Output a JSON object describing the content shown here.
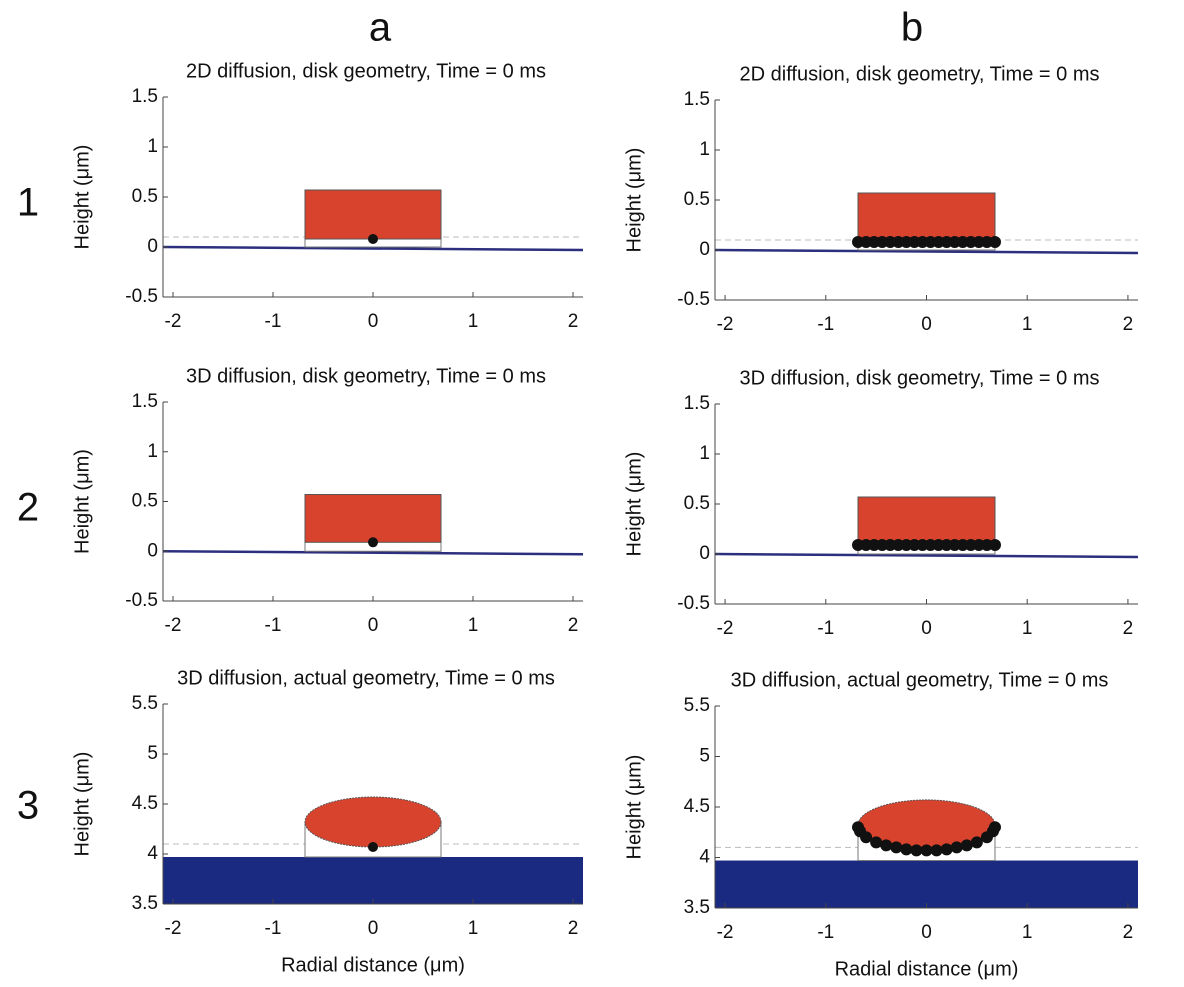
{
  "panel_labels": {
    "columns": [
      "a",
      "b"
    ],
    "rows": [
      "1",
      "2",
      "3"
    ]
  },
  "chart_data": [
    {
      "type": "geometry",
      "title": "2D diffusion, disk geometry, Time = 0 ms",
      "ylabel": "Height (μm)",
      "xlim": [
        -2.1,
        2.1
      ],
      "ylim": [
        -0.5,
        1.5
      ],
      "xticks": [
        -2,
        -1,
        0,
        1,
        2
      ],
      "yticks": [
        -0.5,
        0,
        0.5,
        1,
        1.5
      ],
      "substrate": {
        "kind": "line",
        "x": [
          -2.1,
          2.1
        ],
        "y": [
          0,
          -0.03
        ],
        "color": "#2b2f7e"
      },
      "threshold": 0.1,
      "outline": {
        "x": [
          -0.68,
          0.68
        ],
        "y": [
          0,
          0.57
        ]
      },
      "body": {
        "kind": "rect",
        "x": [
          -0.68,
          0.68
        ],
        "y": [
          0.08,
          0.57
        ],
        "color": "#d8432e"
      },
      "points": {
        "x": [
          0
        ],
        "y": [
          0.08
        ],
        "color": "#111111"
      }
    },
    {
      "type": "geometry",
      "title": "2D diffusion, disk geometry, Time = 0 ms",
      "ylabel": "Height (μm)",
      "xlim": [
        -2.1,
        2.1
      ],
      "ylim": [
        -0.5,
        1.5
      ],
      "xticks": [
        -2,
        -1,
        0,
        1,
        2
      ],
      "yticks": [
        -0.5,
        0,
        0.5,
        1,
        1.5
      ],
      "substrate": {
        "kind": "line",
        "x": [
          -2.1,
          2.1
        ],
        "y": [
          0,
          -0.03
        ],
        "color": "#2b2f7e"
      },
      "threshold": 0.1,
      "outline": {
        "x": [
          -0.68,
          0.68
        ],
        "y": [
          0,
          0.57
        ]
      },
      "body": {
        "kind": "rect",
        "x": [
          -0.68,
          0.68
        ],
        "y": [
          0.08,
          0.57
        ],
        "color": "#d8432e"
      },
      "points": {
        "x": [
          -0.68,
          -0.6,
          -0.52,
          -0.44,
          -0.36,
          -0.28,
          -0.2,
          -0.12,
          -0.04,
          0.04,
          0.12,
          0.2,
          0.28,
          0.36,
          0.44,
          0.52,
          0.6,
          0.68
        ],
        "y": [
          0.08,
          0.08,
          0.08,
          0.08,
          0.08,
          0.08,
          0.08,
          0.08,
          0.08,
          0.08,
          0.08,
          0.08,
          0.08,
          0.08,
          0.08,
          0.08,
          0.08,
          0.08
        ],
        "color": "#111111"
      }
    },
    {
      "type": "geometry",
      "title": "3D diffusion, disk geometry, Time = 0 ms",
      "ylabel": "Height (μm)",
      "xlim": [
        -2.1,
        2.1
      ],
      "ylim": [
        -0.5,
        1.5
      ],
      "xticks": [
        -2,
        -1,
        0,
        1,
        2
      ],
      "yticks": [
        -0.5,
        0,
        0.5,
        1,
        1.5
      ],
      "substrate": {
        "kind": "line",
        "x": [
          -2.1,
          2.1
        ],
        "y": [
          0,
          -0.03
        ],
        "color": "#2b2f7e"
      },
      "outline": {
        "x": [
          -0.68,
          0.68
        ],
        "y": [
          0,
          0.57
        ]
      },
      "body": {
        "kind": "rect",
        "x": [
          -0.68,
          0.68
        ],
        "y": [
          0.09,
          0.57
        ],
        "color": "#d8432e"
      },
      "points": {
        "x": [
          0
        ],
        "y": [
          0.09
        ],
        "color": "#111111"
      }
    },
    {
      "type": "geometry",
      "title": "3D diffusion, disk geometry, Time = 0 ms",
      "ylabel": "Height (μm)",
      "xlim": [
        -2.1,
        2.1
      ],
      "ylim": [
        -0.5,
        1.5
      ],
      "xticks": [
        -2,
        -1,
        0,
        1,
        2
      ],
      "yticks": [
        -0.5,
        0,
        0.5,
        1,
        1.5
      ],
      "substrate": {
        "kind": "line",
        "x": [
          -2.1,
          2.1
        ],
        "y": [
          0,
          -0.03
        ],
        "color": "#2b2f7e"
      },
      "outline": {
        "x": [
          -0.68,
          0.68
        ],
        "y": [
          0,
          0.57
        ]
      },
      "body": {
        "kind": "rect",
        "x": [
          -0.68,
          0.68
        ],
        "y": [
          0.09,
          0.57
        ],
        "color": "#d8432e"
      },
      "points": {
        "x": [
          -0.68,
          -0.6,
          -0.52,
          -0.44,
          -0.36,
          -0.28,
          -0.2,
          -0.12,
          -0.04,
          0.04,
          0.12,
          0.2,
          0.28,
          0.36,
          0.44,
          0.52,
          0.6,
          0.68
        ],
        "y": [
          0.09,
          0.09,
          0.09,
          0.09,
          0.09,
          0.09,
          0.09,
          0.09,
          0.09,
          0.09,
          0.09,
          0.09,
          0.09,
          0.09,
          0.09,
          0.09,
          0.09,
          0.09
        ],
        "color": "#111111"
      }
    },
    {
      "type": "geometry",
      "title": "3D diffusion, actual geometry, Time = 0 ms",
      "ylabel": "Height (μm)",
      "xlabel": "Radial distance (μm)",
      "xlim": [
        -2.1,
        2.1
      ],
      "ylim": [
        3.5,
        5.5
      ],
      "xticks": [
        -2,
        -1,
        0,
        1,
        2
      ],
      "yticks": [
        3.5,
        4,
        4.5,
        5,
        5.5
      ],
      "substrate": {
        "kind": "band",
        "x": [
          -2.1,
          2.1
        ],
        "y": [
          3.5,
          3.97
        ],
        "color": "#1a2a80"
      },
      "threshold": 4.1,
      "outline": {
        "x": [
          -0.68,
          0.68
        ],
        "y": [
          3.97,
          4.32
        ]
      },
      "body": {
        "kind": "ellipse",
        "cx": 0,
        "cy": 4.32,
        "rx": 0.68,
        "ry": 0.25,
        "color": "#d8432e"
      },
      "points": {
        "x": [
          0
        ],
        "y": [
          4.07
        ],
        "color": "#111111"
      }
    },
    {
      "type": "geometry",
      "title": "3D diffusion, actual geometry, Time = 0 ms",
      "ylabel": "Height (μm)",
      "xlabel": "Radial distance (μm)",
      "xlim": [
        -2.1,
        2.1
      ],
      "ylim": [
        3.5,
        5.5
      ],
      "xticks": [
        -2,
        -1,
        0,
        1,
        2
      ],
      "yticks": [
        3.5,
        4,
        4.5,
        5,
        5.5
      ],
      "substrate": {
        "kind": "band",
        "x": [
          -2.1,
          2.1
        ],
        "y": [
          3.5,
          3.97
        ],
        "color": "#1a2a80"
      },
      "threshold": 4.1,
      "outline": {
        "x": [
          -0.68,
          0.68
        ],
        "y": [
          3.97,
          4.32
        ]
      },
      "body": {
        "kind": "ellipse",
        "cx": 0,
        "cy": 4.32,
        "rx": 0.68,
        "ry": 0.25,
        "color": "#d8432e"
      },
      "points": {
        "x": [
          -0.68,
          -0.66,
          -0.6,
          -0.5,
          -0.4,
          -0.3,
          -0.2,
          -0.1,
          0,
          0.1,
          0.2,
          0.3,
          0.4,
          0.5,
          0.6,
          0.66,
          0.68
        ],
        "y": [
          4.3,
          4.26,
          4.2,
          4.15,
          4.12,
          4.1,
          4.08,
          4.07,
          4.07,
          4.07,
          4.08,
          4.1,
          4.12,
          4.15,
          4.2,
          4.26,
          4.3
        ],
        "color": "#111111"
      }
    }
  ]
}
